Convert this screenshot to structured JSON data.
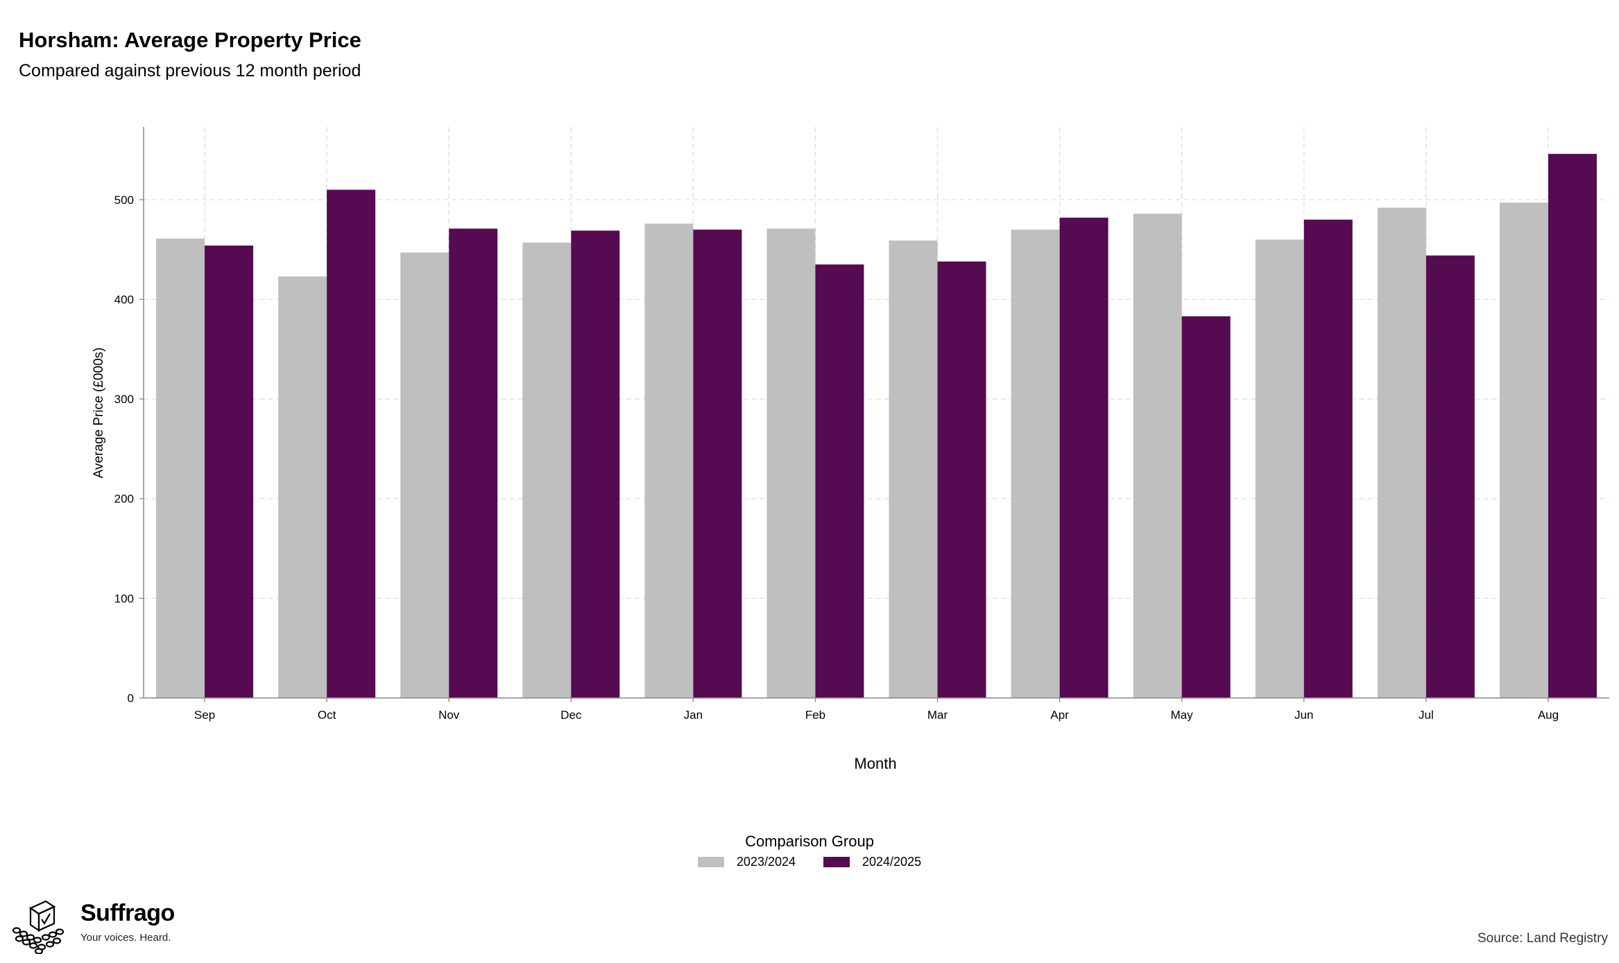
{
  "header": {
    "title": "Horsham: Average Property Price",
    "subtitle": "Compared against previous 12 month period"
  },
  "chart_data": {
    "type": "bar",
    "categories": [
      "Sep",
      "Oct",
      "Nov",
      "Dec",
      "Jan",
      "Feb",
      "Mar",
      "Apr",
      "May",
      "Jun",
      "Jul",
      "Aug"
    ],
    "series": [
      {
        "name": "2023/2024",
        "color": "#bfbfbf",
        "values": [
          461,
          423,
          447,
          457,
          476,
          471,
          459,
          470,
          486,
          460,
          492,
          497
        ]
      },
      {
        "name": "2024/2025",
        "color": "#550a52",
        "values": [
          454,
          510,
          471,
          469,
          470,
          435,
          438,
          482,
          383,
          480,
          444,
          546
        ]
      }
    ],
    "xlabel": "Month",
    "ylabel": "Average Price (£000s)",
    "ylim": [
      0,
      573
    ],
    "yticks": [
      0,
      100,
      200,
      300,
      400,
      500
    ],
    "grid": true,
    "legend_title": "Comparison Group",
    "legend_position": "bottom"
  },
  "branding": {
    "name": "Suffrago",
    "tagline": "Your voices. Heard.",
    "icon": "ballot-box-icon"
  },
  "footer": {
    "source": "Source: Land Registry"
  }
}
